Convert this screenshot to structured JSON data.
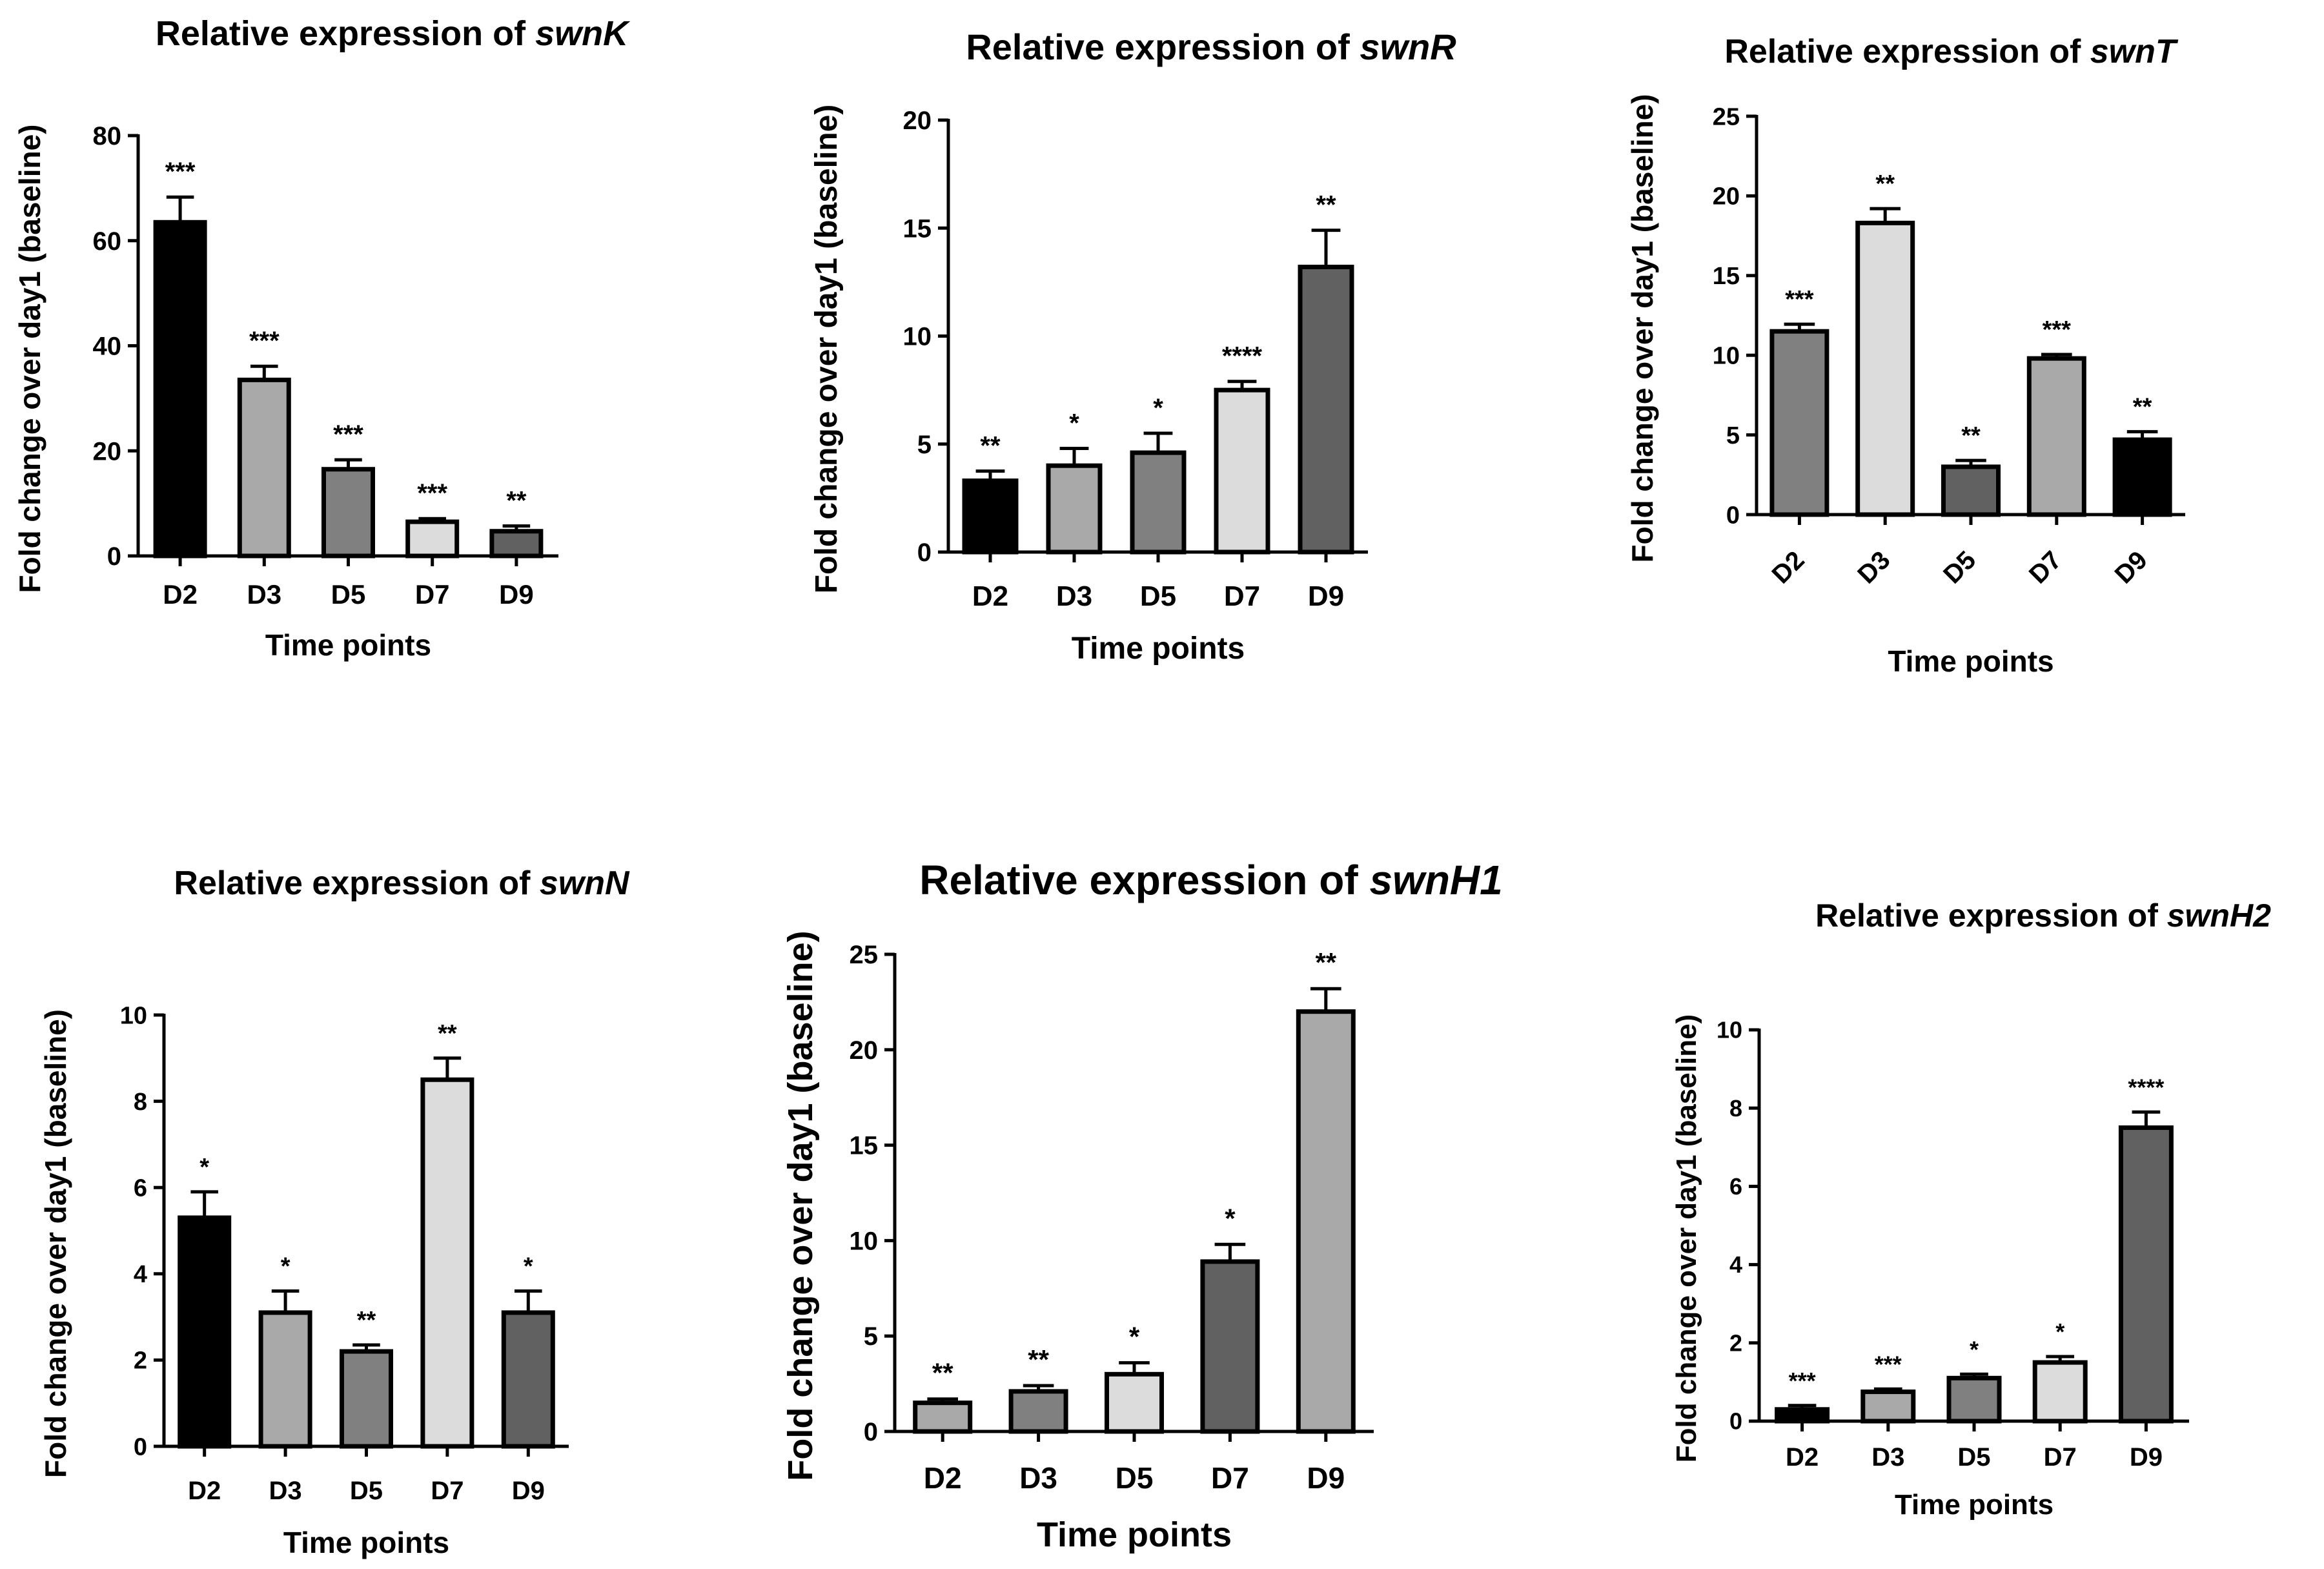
{
  "figure": {
    "title_prefix": "Relative expression of",
    "xlabel": "Time points",
    "ylabel": "Fold change over day1 (baseline)"
  },
  "chart_data": [
    {
      "type": "bar",
      "gene": "swnK",
      "title": "Relative expression of swnK",
      "xlabel": "Time points",
      "ylabel": "Fold change over day1 (baseline)",
      "categories": [
        "D2",
        "D3",
        "D5",
        "D7",
        "D9"
      ],
      "values": [
        63.5,
        33.5,
        16.5,
        6.5,
        4.7
      ],
      "errors": [
        4.8,
        2.6,
        1.8,
        0.6,
        1.0
      ],
      "significance": [
        "***",
        "***",
        "***",
        "***",
        "**"
      ],
      "colors": [
        "#000000",
        "#a9a9a9",
        "#808080",
        "#dcdcdc",
        "#616161"
      ],
      "ylim": [
        0,
        80
      ],
      "yticks": [
        0,
        20,
        40,
        60,
        80
      ]
    },
    {
      "type": "bar",
      "gene": "swnR",
      "title": "Relative expression of swnR",
      "xlabel": "Time points",
      "ylabel": "Fold change over day1 (baseline)",
      "categories": [
        "D2",
        "D3",
        "D5",
        "D7",
        "D9"
      ],
      "values": [
        3.3,
        4.0,
        4.6,
        7.5,
        13.2
      ],
      "errors": [
        0.45,
        0.8,
        0.9,
        0.4,
        1.7
      ],
      "significance": [
        "**",
        "*",
        "*",
        "****",
        "**"
      ],
      "colors": [
        "#000000",
        "#a9a9a9",
        "#808080",
        "#dcdcdc",
        "#616161"
      ],
      "ylim": [
        0,
        20
      ],
      "yticks": [
        0,
        5,
        10,
        15,
        20
      ]
    },
    {
      "type": "bar",
      "gene": "swnT",
      "title": "Relative expression of swnT",
      "xlabel": "Time points",
      "ylabel": "Fold change over day1 (baseline)",
      "categories": [
        "D2",
        "D3",
        "D5",
        "D7",
        "D9"
      ],
      "values": [
        11.5,
        18.3,
        3.0,
        9.8,
        4.7
      ],
      "errors": [
        0.45,
        0.9,
        0.4,
        0.25,
        0.5
      ],
      "significance": [
        "***",
        "**",
        "**",
        "***",
        "**"
      ],
      "colors": [
        "#808080",
        "#dcdcdc",
        "#616161",
        "#a9a9a9",
        "#000000"
      ],
      "ylim": [
        0,
        25
      ],
      "yticks": [
        0,
        5,
        10,
        15,
        20,
        25
      ]
    },
    {
      "type": "bar",
      "gene": "swnN",
      "title": "Relative expression of swnN",
      "xlabel": "Time points",
      "ylabel": "Fold change over day1 (baseline)",
      "categories": [
        "D2",
        "D3",
        "D5",
        "D7",
        "D9"
      ],
      "values": [
        5.3,
        3.1,
        2.2,
        8.5,
        3.1
      ],
      "errors": [
        0.6,
        0.5,
        0.15,
        0.5,
        0.5
      ],
      "significance": [
        "*",
        "*",
        "**",
        "**",
        "*"
      ],
      "colors": [
        "#000000",
        "#a9a9a9",
        "#808080",
        "#dcdcdc",
        "#616161"
      ],
      "ylim": [
        0,
        10
      ],
      "yticks": [
        0,
        2,
        4,
        6,
        8,
        10
      ]
    },
    {
      "type": "bar",
      "gene": "swnH1",
      "title": "Relative expression of swnH1",
      "xlabel": "Time points",
      "ylabel": "Fold change over day1 (baseline)",
      "categories": [
        "D2",
        "D3",
        "D5",
        "D7",
        "D9"
      ],
      "values": [
        1.5,
        2.1,
        3.0,
        8.9,
        22.0
      ],
      "errors": [
        0.2,
        0.3,
        0.6,
        0.9,
        1.2
      ],
      "significance": [
        "**",
        "**",
        "*",
        "*",
        "**"
      ],
      "colors": [
        "#a9a9a9",
        "#808080",
        "#dcdcdc",
        "#616161",
        "#a9a9a9"
      ],
      "ylim": [
        0,
        25
      ],
      "yticks": [
        0,
        5,
        10,
        15,
        20,
        25
      ]
    },
    {
      "type": "bar",
      "gene": "swnH2",
      "title": "Relative expression of swnH2",
      "xlabel": "Time points",
      "ylabel": "Fold change over day1 (baseline)",
      "categories": [
        "D2",
        "D3",
        "D5",
        "D7",
        "D9"
      ],
      "values": [
        0.3,
        0.75,
        1.1,
        1.5,
        7.5
      ],
      "errors": [
        0.1,
        0.07,
        0.1,
        0.15,
        0.4
      ],
      "significance": [
        "***",
        "***",
        "*",
        "*",
        "****"
      ],
      "colors": [
        "#000000",
        "#a9a9a9",
        "#808080",
        "#dcdcdc",
        "#616161"
      ],
      "ylim": [
        0,
        10
      ],
      "yticks": [
        0,
        2,
        4,
        6,
        8,
        10
      ]
    }
  ]
}
